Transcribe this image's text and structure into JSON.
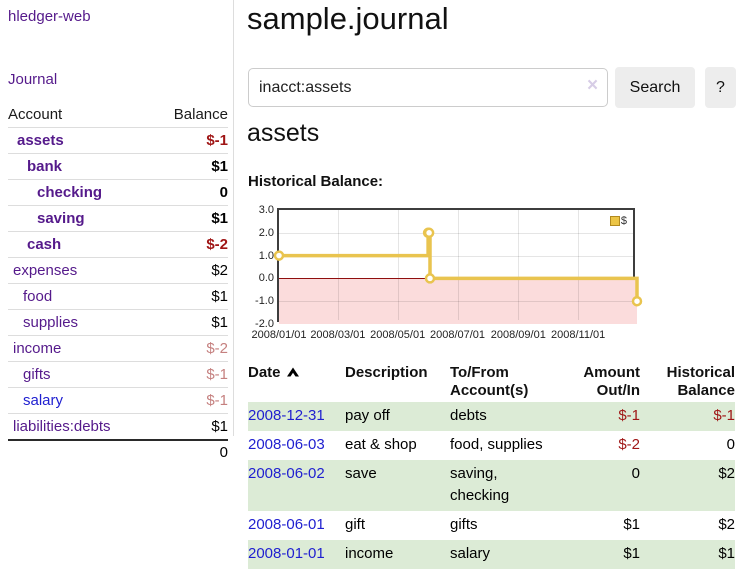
{
  "app": {
    "title": "hledger-web"
  },
  "sidebar": {
    "journal_link": "Journal",
    "table": {
      "account_header": "Account",
      "balance_header": "Balance",
      "rows": [
        {
          "name": "assets",
          "balance": "$-1",
          "depth": 0,
          "bold": true,
          "neg": "strong"
        },
        {
          "name": "bank",
          "balance": "$1",
          "depth": 1,
          "bold": true
        },
        {
          "name": "checking",
          "balance": "0",
          "depth": 2,
          "bold": true
        },
        {
          "name": "saving",
          "balance": "$1",
          "depth": 2,
          "bold": true
        },
        {
          "name": "cash",
          "balance": "$-2",
          "depth": 1,
          "bold": true,
          "neg": "strong"
        },
        {
          "name": "expenses",
          "balance": "$2",
          "depth": 0
        },
        {
          "name": "food",
          "balance": "$1",
          "depth": 1
        },
        {
          "name": "supplies",
          "balance": "$1",
          "depth": 1
        },
        {
          "name": "income",
          "balance": "$-2",
          "depth": 0,
          "neg": "dim"
        },
        {
          "name": "gifts",
          "balance": "$-1",
          "depth": 1,
          "neg": "dim"
        },
        {
          "name": "salary",
          "balance": "$-1",
          "depth": 1,
          "neg": "dim",
          "link_color": "blue"
        },
        {
          "name": "liabilities:debts",
          "balance": "$1",
          "depth": 0
        }
      ],
      "total": "0"
    }
  },
  "main": {
    "title": "sample.journal",
    "search": {
      "value": "inacct:assets",
      "clear_icon": "×",
      "button": "Search",
      "help_button": "?"
    },
    "account_heading": "assets",
    "chart_heading": "Historical Balance:"
  },
  "chart_data": {
    "type": "line",
    "step": true,
    "title": "Historical Balance",
    "legend": "$",
    "legend_position": "top-right",
    "ylim": [
      -2,
      3
    ],
    "y_ticks": [
      "3.0",
      "2.0",
      "1.0",
      "0.0",
      "-1.0",
      "-2.0"
    ],
    "x_ticks": [
      "2008/01/01",
      "2008/03/01",
      "2008/05/01",
      "2008/07/01",
      "2008/09/01",
      "2008/11/01"
    ],
    "series": [
      {
        "name": "$",
        "points": [
          [
            "2008-01-01",
            1
          ],
          [
            "2008-06-01",
            2
          ],
          [
            "2008-06-02",
            2
          ],
          [
            "2008-06-03",
            0
          ],
          [
            "2008-12-31",
            -1
          ]
        ]
      }
    ],
    "line_color": "#e9c44f",
    "negative_region_color": "#fbdcdc",
    "zero_line_color": "#8f0e0e",
    "grid": true
  },
  "table": {
    "sort": "ascending",
    "headers": {
      "date": "Date",
      "description": "Description",
      "tofrom_line1": "To/From",
      "tofrom_line2": "Account(s)",
      "amount_line1": "Amount",
      "amount_line2": "Out/In",
      "historical_line1": "Historical",
      "historical_line2": "Balance"
    },
    "rows": [
      {
        "date": "2008-12-31",
        "description": "pay off",
        "accounts": "debts",
        "amount": "$-1",
        "balance": "$-1"
      },
      {
        "date": "2008-06-03",
        "description": "eat & shop",
        "accounts": "food, supplies",
        "amount": "$-2",
        "balance": "0"
      },
      {
        "date": "2008-06-02",
        "description": "save",
        "accounts": "saving, checking",
        "amount": "0",
        "balance": "$2"
      },
      {
        "date": "2008-06-01",
        "description": "gift",
        "accounts": "gifts",
        "amount": "$1",
        "balance": "$2"
      },
      {
        "date": "2008-01-01",
        "description": "income",
        "accounts": "salary",
        "amount": "$1",
        "balance": "$1"
      }
    ]
  },
  "colors": {
    "link_purple": "#551a8b",
    "link_blue": "#1f1fd0",
    "negative_strong": "#9f1515",
    "negative_dim": "#c5807f",
    "row_green": "#dcebd6",
    "chart_gold": "#e9c44f"
  }
}
